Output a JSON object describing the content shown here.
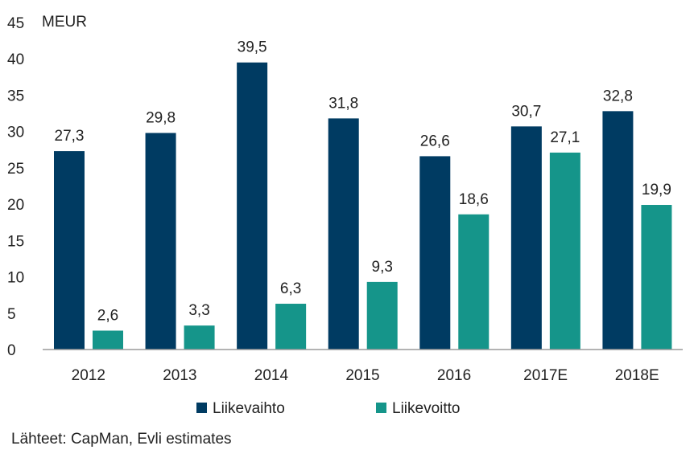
{
  "chart_data": {
    "type": "bar",
    "unit_label": "MEUR",
    "categories": [
      "2012",
      "2013",
      "2014",
      "2015",
      "2016",
      "2017E",
      "2018E"
    ],
    "series": [
      {
        "name": "Liikevaihto",
        "color": "#003B62",
        "values": [
          27.3,
          29.8,
          39.5,
          31.8,
          26.6,
          30.7,
          32.8
        ],
        "labels": [
          "27,3",
          "29,8",
          "39,5",
          "31,8",
          "26,6",
          "30,7",
          "32,8"
        ]
      },
      {
        "name": "Liikevoitto",
        "color": "#15958A",
        "values": [
          2.6,
          3.3,
          6.3,
          9.3,
          18.6,
          27.1,
          19.9
        ],
        "labels": [
          "2,6",
          "3,3",
          "6,3",
          "9,3",
          "18,6",
          "27,1",
          "19,9"
        ]
      }
    ],
    "yticks": [
      0,
      5,
      10,
      15,
      20,
      25,
      30,
      35,
      40,
      45
    ],
    "ylim": [
      0,
      45
    ],
    "legend_position": "bottom-center"
  },
  "source_text": "Lähteet: CapMan, Evli estimates"
}
